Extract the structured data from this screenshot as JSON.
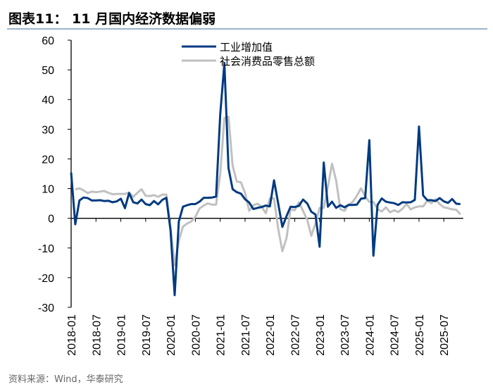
{
  "title": "图表11： 11 月国内经济数据偏弱",
  "source": "资料来源：Wind，华泰研究",
  "chart_data": {
    "type": "line",
    "title": "",
    "xlabel": "",
    "ylabel": "",
    "ylim": [
      -30,
      60
    ],
    "yticks": [
      "60",
      "50",
      "40",
      "30",
      "20",
      "10",
      "0",
      "-10",
      "-20",
      "-30"
    ],
    "xticks": [
      "2018-01",
      "2018-07",
      "2019-01",
      "2019-07",
      "2020-01",
      "2020-07",
      "2021-01",
      "2021-07",
      "2022-01",
      "2022-07",
      "2023-01",
      "2023-07",
      "2024-01",
      "2024-07",
      "2025-01",
      "2025-07"
    ],
    "x_start": "2018-01",
    "x_end": "2025-11",
    "grid": false,
    "legend_position": "top-center",
    "series": [
      {
        "name": "工业增加值",
        "color": "#003a80",
        "values": [
          15.4,
          -2,
          6,
          7,
          6.8,
          6,
          6,
          6.1,
          5.8,
          5.9,
          5.4,
          5.7,
          6.6,
          3.4,
          8.5,
          5.4,
          5,
          6.3,
          4.8,
          4.4,
          5.8,
          4.7,
          6.2,
          6.9,
          -4,
          -25.9,
          -1.1,
          3.9,
          4.4,
          4.8,
          4.8,
          5.6,
          6.9,
          6.9,
          7,
          7.3,
          35,
          52.3,
          17,
          9.8,
          8.8,
          8.3,
          6.4,
          5.3,
          3.1,
          3.5,
          3.8,
          4.3,
          4,
          12.8,
          5,
          -2.9,
          0.7,
          3.9,
          3.8,
          4.2,
          6.3,
          5,
          2.2,
          1.3,
          -9.6,
          18.8,
          3.9,
          5.6,
          3.5,
          4.4,
          3.7,
          4.5,
          4.5,
          4.6,
          6.6,
          6.8,
          26.3,
          -12.6,
          4.5,
          6.7,
          5.6,
          5.3,
          5.1,
          4.5,
          5.4,
          5.3,
          5.4,
          6.2,
          30.9,
          7.7,
          6.1,
          6.1,
          5.8,
          6.8,
          5.7,
          5.2,
          6.5,
          4.9,
          4.8
        ]
      },
      {
        "name": "社会消费品零售总额",
        "color": "#c0c0c0",
        "values": [
          null,
          9.7,
          10.1,
          9.4,
          8.5,
          9,
          8.8,
          9,
          9.2,
          8.6,
          8.1,
          8.2,
          8.2,
          8.2,
          8.7,
          7.2,
          8.6,
          9.8,
          7.6,
          7.5,
          7.8,
          7.2,
          8,
          8,
          -3,
          -15.8,
          -7.5,
          -2.8,
          -1.8,
          -1.1,
          0.5,
          3.3,
          4.3,
          5,
          4.6,
          4.6,
          15,
          33.8,
          34.2,
          17.7,
          12.4,
          12.1,
          8.5,
          2.5,
          4.4,
          4.9,
          3.9,
          1.7,
          6.7,
          6.7,
          -3.5,
          -11.1,
          -6.7,
          3.1,
          2.7,
          5.4,
          2.5,
          -0.5,
          -5.9,
          -1.8,
          3.5,
          3.5,
          10.6,
          18.4,
          12.7,
          3.1,
          2.5,
          4.6,
          5.5,
          7.6,
          10.1,
          7.4,
          5.5,
          5.5,
          3.1,
          2.3,
          3.7,
          2,
          2.7,
          2.1,
          3.2,
          4.8,
          3,
          3.7,
          4,
          4,
          5.9,
          5.1,
          6.4,
          4.8,
          3.7,
          3.4,
          3,
          2.9,
          1.3
        ]
      }
    ]
  }
}
